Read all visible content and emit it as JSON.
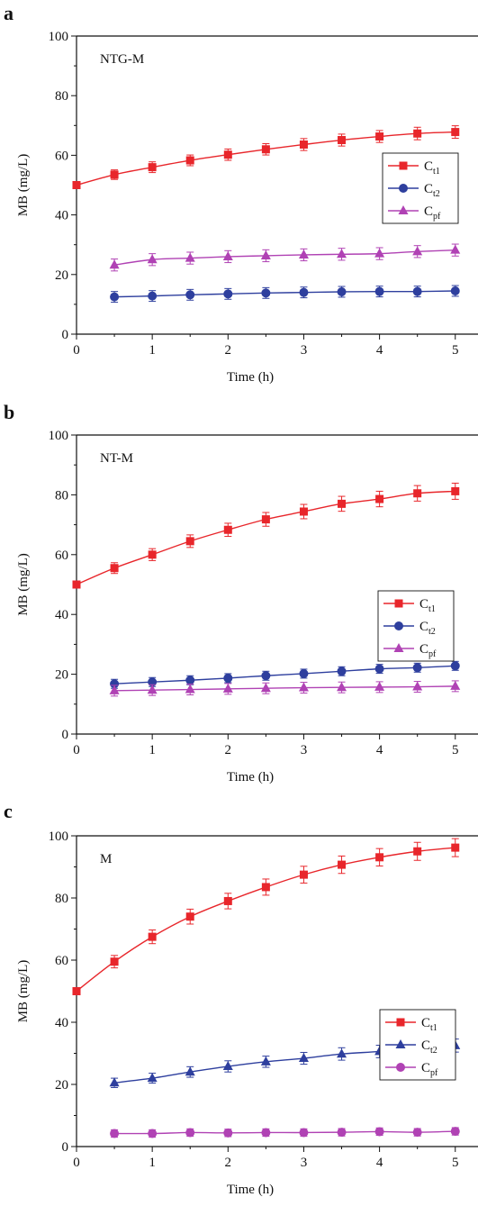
{
  "colors": {
    "red": "#e8262b",
    "blue": "#2e3f9e",
    "magenta": "#b042b4",
    "axis": "#111111"
  },
  "chart_data": [
    {
      "panel_label": "a",
      "type": "line",
      "annotation": "NTG-M",
      "xlabel": "Time (h)",
      "ylabel": "MB (mg/L)",
      "xlim": [
        0,
        5.3
      ],
      "ylim": [
        0,
        100
      ],
      "x_ticks": [
        "0",
        "1",
        "2",
        "3",
        "4",
        "5"
      ],
      "y_ticks": [
        "0",
        "20",
        "40",
        "60",
        "80",
        "100"
      ],
      "legend_position": "right",
      "series": [
        {
          "name": "Ct1",
          "main": "C",
          "sub": "t1",
          "marker": "square",
          "color": "#e8262b",
          "x": [
            0,
            0.5,
            1,
            1.5,
            2,
            2.5,
            3,
            3.5,
            4,
            4.5,
            5
          ],
          "y": [
            50,
            53.5,
            56,
            58.3,
            60.2,
            62,
            63.6,
            65.1,
            66.3,
            67.3,
            67.8
          ],
          "err": [
            0,
            1.6,
            1.8,
            1.8,
            1.9,
            1.9,
            2,
            2,
            2,
            2.1,
            2.1
          ]
        },
        {
          "name": "Ct2",
          "main": "C",
          "sub": "t2",
          "marker": "circle",
          "color": "#2e3f9e",
          "x": [
            0.5,
            1,
            1.5,
            2,
            2.5,
            3,
            3.5,
            4,
            4.5,
            5
          ],
          "y": [
            12.5,
            12.8,
            13.2,
            13.5,
            13.8,
            14,
            14.2,
            14.3,
            14.3,
            14.5
          ],
          "err": [
            1.8,
            1.8,
            1.8,
            1.8,
            1.8,
            1.8,
            1.8,
            1.8,
            1.8,
            1.8
          ]
        },
        {
          "name": "Cpf",
          "main": "C",
          "sub": "pf",
          "marker": "triangle",
          "color": "#b042b4",
          "x": [
            0.5,
            1,
            1.5,
            2,
            2.5,
            3,
            3.5,
            4,
            4.5,
            5
          ],
          "y": [
            23.2,
            25,
            25.5,
            26,
            26.3,
            26.6,
            26.8,
            27,
            27.7,
            28.2
          ],
          "err": [
            2,
            2,
            2,
            2,
            2,
            2,
            2,
            2,
            2,
            2
          ]
        }
      ]
    },
    {
      "panel_label": "b",
      "type": "line",
      "annotation": "NT-M",
      "xlabel": "Time (h)",
      "ylabel": "MB (mg/L)",
      "xlim": [
        0,
        5.3
      ],
      "ylim": [
        0,
        100
      ],
      "x_ticks": [
        "0",
        "1",
        "2",
        "3",
        "4",
        "5"
      ],
      "y_ticks": [
        "0",
        "20",
        "40",
        "60",
        "80",
        "100"
      ],
      "legend_position": "right",
      "series": [
        {
          "name": "Ct1",
          "main": "C",
          "sub": "t1",
          "marker": "square",
          "color": "#e8262b",
          "x": [
            0,
            0.5,
            1,
            1.5,
            2,
            2.5,
            3,
            3.5,
            4,
            4.5,
            5
          ],
          "y": [
            50,
            55.5,
            60,
            64.5,
            68.3,
            71.8,
            74.4,
            77,
            78.6,
            80.5,
            81.2
          ],
          "err": [
            0,
            1.8,
            2,
            2.1,
            2.2,
            2.3,
            2.4,
            2.5,
            2.6,
            2.6,
            2.7
          ]
        },
        {
          "name": "Ct2",
          "main": "C",
          "sub": "t2",
          "marker": "circle",
          "color": "#2e3f9e",
          "x": [
            0.5,
            1,
            1.5,
            2,
            2.5,
            3,
            3.5,
            4,
            4.5,
            5
          ],
          "y": [
            16.8,
            17.4,
            18,
            18.7,
            19.5,
            20.2,
            21,
            21.8,
            22.2,
            22.8
          ],
          "err": [
            1.5,
            1.5,
            1.5,
            1.5,
            1.5,
            1.5,
            1.5,
            1.5,
            1.5,
            1.5
          ]
        },
        {
          "name": "Cpf",
          "main": "C",
          "sub": "pf",
          "marker": "triangle",
          "color": "#b042b4",
          "x": [
            0.5,
            1,
            1.5,
            2,
            2.5,
            3,
            3.5,
            4,
            4.5,
            5
          ],
          "y": [
            14.5,
            14.7,
            14.9,
            15.1,
            15.3,
            15.5,
            15.6,
            15.7,
            15.8,
            16
          ],
          "err": [
            1.8,
            1.8,
            1.8,
            1.8,
            1.8,
            1.8,
            1.8,
            1.8,
            1.8,
            1.8
          ]
        }
      ]
    },
    {
      "panel_label": "c",
      "type": "line",
      "annotation": "M",
      "xlabel": "Time (h)",
      "ylabel": "MB (mg/L)",
      "xlim": [
        0,
        5.3
      ],
      "ylim": [
        0,
        100
      ],
      "x_ticks": [
        "0",
        "1",
        "2",
        "3",
        "4",
        "5"
      ],
      "y_ticks": [
        "0",
        "20",
        "40",
        "60",
        "80",
        "100"
      ],
      "legend_position": "right",
      "series": [
        {
          "name": "Ct1",
          "main": "C",
          "sub": "t1",
          "marker": "square",
          "color": "#e8262b",
          "x": [
            0,
            0.5,
            1,
            1.5,
            2,
            2.5,
            3,
            3.5,
            4,
            4.5,
            5
          ],
          "y": [
            50,
            59.5,
            67.5,
            74,
            79,
            83.5,
            87.5,
            90.7,
            93.1,
            95,
            96.2
          ],
          "err": [
            0,
            2,
            2.2,
            2.4,
            2.5,
            2.6,
            2.7,
            2.8,
            2.8,
            2.9,
            2.9
          ]
        },
        {
          "name": "Ct2",
          "main": "C",
          "sub": "t2",
          "marker": "triangle",
          "color": "#2e3f9e",
          "x": [
            0.5,
            1,
            1.5,
            2,
            2.5,
            3,
            3.5,
            4,
            4.5,
            5
          ],
          "y": [
            20.5,
            22,
            24,
            25.8,
            27.3,
            28.4,
            29.8,
            30.6,
            31.7,
            32.5
          ],
          "err": [
            1.5,
            1.6,
            1.7,
            1.8,
            1.8,
            1.9,
            2,
            2,
            2.1,
            2.1
          ]
        },
        {
          "name": "Cpf",
          "main": "C",
          "sub": "pf",
          "marker": "circle",
          "color": "#b042b4",
          "x": [
            0.5,
            1,
            1.5,
            2,
            2.5,
            3,
            3.5,
            4,
            4.5,
            5
          ],
          "y": [
            4.2,
            4.2,
            4.5,
            4.4,
            4.5,
            4.5,
            4.6,
            4.8,
            4.6,
            4.9
          ],
          "err": [
            1.2,
            1.2,
            1.2,
            1.2,
            1.2,
            1.2,
            1.2,
            1.2,
            1.2,
            1.2
          ]
        }
      ]
    }
  ]
}
